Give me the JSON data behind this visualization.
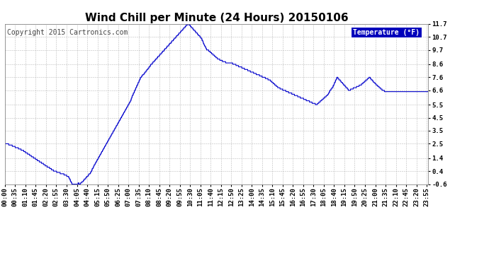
{
  "title": "Wind Chill per Minute (24 Hours) 20150106",
  "copyright": "Copyright 2015 Cartronics.com",
  "legend_label": "Temperature (°F)",
  "legend_bg": "#0000bb",
  "legend_text_color": "#ffffff",
  "line_color": "#0000cc",
  "bg_color": "#ffffff",
  "grid_color": "#bbbbbb",
  "yticks": [
    -0.6,
    0.4,
    1.4,
    2.5,
    3.5,
    4.5,
    5.5,
    6.6,
    7.6,
    8.6,
    9.7,
    10.7,
    11.7
  ],
  "ymin": -0.6,
  "ymax": 11.7,
  "title_fontsize": 11,
  "axis_fontsize": 6.5,
  "copyright_fontsize": 7,
  "key_points": [
    [
      0,
      2.5
    ],
    [
      5,
      2.5
    ],
    [
      10,
      2.5
    ],
    [
      15,
      2.4
    ],
    [
      20,
      2.4
    ],
    [
      30,
      2.3
    ],
    [
      40,
      2.2
    ],
    [
      50,
      2.1
    ],
    [
      60,
      2.0
    ],
    [
      80,
      1.7
    ],
    [
      100,
      1.4
    ],
    [
      120,
      1.1
    ],
    [
      140,
      0.8
    ],
    [
      155,
      0.6
    ],
    [
      160,
      0.5
    ],
    [
      170,
      0.4
    ],
    [
      175,
      0.35
    ],
    [
      180,
      0.3
    ],
    [
      195,
      0.2
    ],
    [
      200,
      0.15
    ],
    [
      205,
      0.1
    ],
    [
      210,
      0.05
    ],
    [
      215,
      0.0
    ],
    [
      218,
      -0.1
    ],
    [
      220,
      -0.2
    ],
    [
      222,
      -0.3
    ],
    [
      224,
      -0.4
    ],
    [
      226,
      -0.5
    ],
    [
      228,
      -0.55
    ],
    [
      230,
      -0.6
    ],
    [
      235,
      -0.6
    ],
    [
      237,
      -0.55
    ],
    [
      238,
      -0.6
    ],
    [
      240,
      -0.6
    ],
    [
      242,
      -0.55
    ],
    [
      244,
      -0.6
    ],
    [
      245,
      -0.55
    ],
    [
      247,
      -0.6
    ],
    [
      249,
      -0.5
    ],
    [
      250,
      -0.5
    ],
    [
      252,
      -0.55
    ],
    [
      254,
      -0.6
    ],
    [
      256,
      -0.55
    ],
    [
      258,
      -0.5
    ],
    [
      260,
      -0.5
    ],
    [
      262,
      -0.45
    ],
    [
      264,
      -0.4
    ],
    [
      266,
      -0.35
    ],
    [
      268,
      -0.3
    ],
    [
      270,
      -0.25
    ],
    [
      272,
      -0.2
    ],
    [
      274,
      -0.15
    ],
    [
      276,
      -0.1
    ],
    [
      278,
      -0.05
    ],
    [
      280,
      0.0
    ],
    [
      282,
      0.05
    ],
    [
      284,
      0.1
    ],
    [
      286,
      0.15
    ],
    [
      288,
      0.2
    ],
    [
      290,
      0.25
    ],
    [
      292,
      0.3
    ],
    [
      294,
      0.4
    ],
    [
      296,
      0.5
    ],
    [
      298,
      0.6
    ],
    [
      300,
      0.7
    ],
    [
      305,
      0.9
    ],
    [
      310,
      1.1
    ],
    [
      315,
      1.3
    ],
    [
      320,
      1.5
    ],
    [
      325,
      1.7
    ],
    [
      330,
      1.9
    ],
    [
      340,
      2.3
    ],
    [
      350,
      2.7
    ],
    [
      360,
      3.1
    ],
    [
      370,
      3.5
    ],
    [
      380,
      3.9
    ],
    [
      390,
      4.3
    ],
    [
      395,
      4.5
    ],
    [
      400,
      4.7
    ],
    [
      410,
      5.1
    ],
    [
      415,
      5.3
    ],
    [
      420,
      5.5
    ],
    [
      425,
      5.7
    ],
    [
      428,
      5.8
    ],
    [
      430,
      6.0
    ],
    [
      432,
      6.1
    ],
    [
      434,
      6.2
    ],
    [
      436,
      6.3
    ],
    [
      438,
      6.4
    ],
    [
      440,
      6.5
    ],
    [
      442,
      6.6
    ],
    [
      444,
      6.7
    ],
    [
      446,
      6.8
    ],
    [
      448,
      6.9
    ],
    [
      450,
      7.0
    ],
    [
      452,
      7.1
    ],
    [
      454,
      7.2
    ],
    [
      456,
      7.3
    ],
    [
      458,
      7.4
    ],
    [
      460,
      7.5
    ],
    [
      462,
      7.6
    ],
    [
      464,
      7.65
    ],
    [
      466,
      7.7
    ],
    [
      468,
      7.75
    ],
    [
      470,
      7.8
    ],
    [
      472,
      7.85
    ],
    [
      474,
      7.9
    ],
    [
      476,
      7.95
    ],
    [
      478,
      8.0
    ],
    [
      480,
      8.1
    ],
    [
      485,
      8.2
    ],
    [
      488,
      8.3
    ],
    [
      490,
      8.35
    ],
    [
      492,
      8.4
    ],
    [
      494,
      8.5
    ],
    [
      496,
      8.55
    ],
    [
      498,
      8.6
    ],
    [
      500,
      8.65
    ],
    [
      502,
      8.7
    ],
    [
      504,
      8.75
    ],
    [
      506,
      8.8
    ],
    [
      508,
      8.85
    ],
    [
      510,
      8.9
    ],
    [
      512,
      8.95
    ],
    [
      514,
      9.0
    ],
    [
      516,
      9.05
    ],
    [
      518,
      9.1
    ],
    [
      520,
      9.15
    ],
    [
      522,
      9.2
    ],
    [
      524,
      9.25
    ],
    [
      526,
      9.3
    ],
    [
      528,
      9.35
    ],
    [
      530,
      9.4
    ],
    [
      532,
      9.45
    ],
    [
      534,
      9.5
    ],
    [
      536,
      9.55
    ],
    [
      538,
      9.6
    ],
    [
      540,
      9.65
    ],
    [
      542,
      9.7
    ],
    [
      544,
      9.75
    ],
    [
      546,
      9.8
    ],
    [
      548,
      9.85
    ],
    [
      550,
      9.9
    ],
    [
      552,
      9.95
    ],
    [
      554,
      10.0
    ],
    [
      556,
      10.05
    ],
    [
      558,
      10.1
    ],
    [
      560,
      10.15
    ],
    [
      562,
      10.2
    ],
    [
      564,
      10.25
    ],
    [
      566,
      10.3
    ],
    [
      568,
      10.35
    ],
    [
      570,
      10.4
    ],
    [
      572,
      10.45
    ],
    [
      574,
      10.5
    ],
    [
      576,
      10.55
    ],
    [
      578,
      10.6
    ],
    [
      580,
      10.65
    ],
    [
      582,
      10.7
    ],
    [
      584,
      10.75
    ],
    [
      586,
      10.8
    ],
    [
      588,
      10.85
    ],
    [
      590,
      10.9
    ],
    [
      592,
      10.95
    ],
    [
      594,
      11.0
    ],
    [
      596,
      11.05
    ],
    [
      598,
      11.1
    ],
    [
      600,
      11.15
    ],
    [
      602,
      11.2
    ],
    [
      604,
      11.25
    ],
    [
      606,
      11.3
    ],
    [
      608,
      11.35
    ],
    [
      610,
      11.4
    ],
    [
      612,
      11.45
    ],
    [
      614,
      11.5
    ],
    [
      616,
      11.55
    ],
    [
      618,
      11.6
    ],
    [
      620,
      11.65
    ],
    [
      622,
      11.7
    ],
    [
      624,
      11.7
    ],
    [
      626,
      11.65
    ],
    [
      628,
      11.6
    ],
    [
      630,
      11.55
    ],
    [
      632,
      11.5
    ],
    [
      634,
      11.45
    ],
    [
      636,
      11.4
    ],
    [
      638,
      11.35
    ],
    [
      640,
      11.3
    ],
    [
      642,
      11.25
    ],
    [
      644,
      11.2
    ],
    [
      646,
      11.15
    ],
    [
      648,
      11.1
    ],
    [
      650,
      11.05
    ],
    [
      652,
      11.0
    ],
    [
      654,
      10.95
    ],
    [
      656,
      10.9
    ],
    [
      658,
      10.85
    ],
    [
      660,
      10.8
    ],
    [
      662,
      10.75
    ],
    [
      664,
      10.7
    ],
    [
      666,
      10.65
    ],
    [
      668,
      10.6
    ],
    [
      670,
      10.5
    ],
    [
      672,
      10.4
    ],
    [
      674,
      10.3
    ],
    [
      676,
      10.2
    ],
    [
      678,
      10.1
    ],
    [
      680,
      10.0
    ],
    [
      682,
      9.9
    ],
    [
      684,
      9.8
    ],
    [
      686,
      9.7
    ],
    [
      688,
      9.7
    ],
    [
      690,
      9.7
    ],
    [
      695,
      9.6
    ],
    [
      700,
      9.5
    ],
    [
      705,
      9.4
    ],
    [
      710,
      9.3
    ],
    [
      715,
      9.2
    ],
    [
      720,
      9.1
    ],
    [
      725,
      9.0
    ],
    [
      730,
      8.95
    ],
    [
      735,
      8.9
    ],
    [
      740,
      8.85
    ],
    [
      745,
      8.8
    ],
    [
      750,
      8.75
    ],
    [
      755,
      8.7
    ],
    [
      760,
      8.7
    ],
    [
      765,
      8.7
    ],
    [
      770,
      8.7
    ],
    [
      775,
      8.65
    ],
    [
      780,
      8.6
    ],
    [
      785,
      8.55
    ],
    [
      790,
      8.5
    ],
    [
      795,
      8.45
    ],
    [
      800,
      8.4
    ],
    [
      805,
      8.35
    ],
    [
      810,
      8.3
    ],
    [
      815,
      8.25
    ],
    [
      820,
      8.2
    ],
    [
      825,
      8.15
    ],
    [
      830,
      8.1
    ],
    [
      835,
      8.05
    ],
    [
      840,
      8.0
    ],
    [
      845,
      7.95
    ],
    [
      850,
      7.9
    ],
    [
      855,
      7.85
    ],
    [
      860,
      7.8
    ],
    [
      865,
      7.75
    ],
    [
      870,
      7.7
    ],
    [
      875,
      7.65
    ],
    [
      880,
      7.6
    ],
    [
      885,
      7.55
    ],
    [
      890,
      7.5
    ],
    [
      895,
      7.45
    ],
    [
      900,
      7.4
    ],
    [
      905,
      7.3
    ],
    [
      910,
      7.2
    ],
    [
      915,
      7.1
    ],
    [
      920,
      7.0
    ],
    [
      925,
      6.9
    ],
    [
      930,
      6.8
    ],
    [
      935,
      6.75
    ],
    [
      940,
      6.7
    ],
    [
      945,
      6.65
    ],
    [
      950,
      6.6
    ],
    [
      955,
      6.55
    ],
    [
      960,
      6.5
    ],
    [
      965,
      6.45
    ],
    [
      970,
      6.4
    ],
    [
      975,
      6.35
    ],
    [
      980,
      6.3
    ],
    [
      985,
      6.25
    ],
    [
      990,
      6.2
    ],
    [
      995,
      6.15
    ],
    [
      1000,
      6.1
    ],
    [
      1005,
      6.05
    ],
    [
      1010,
      6.0
    ],
    [
      1015,
      5.95
    ],
    [
      1020,
      5.9
    ],
    [
      1025,
      5.85
    ],
    [
      1030,
      5.8
    ],
    [
      1035,
      5.75
    ],
    [
      1040,
      5.7
    ],
    [
      1045,
      5.65
    ],
    [
      1050,
      5.6
    ],
    [
      1055,
      5.55
    ],
    [
      1060,
      5.5
    ],
    [
      1065,
      5.6
    ],
    [
      1070,
      5.7
    ],
    [
      1075,
      5.8
    ],
    [
      1080,
      5.9
    ],
    [
      1085,
      6.0
    ],
    [
      1090,
      6.1
    ],
    [
      1095,
      6.2
    ],
    [
      1100,
      6.3
    ],
    [
      1102,
      6.4
    ],
    [
      1104,
      6.5
    ],
    [
      1106,
      6.6
    ],
    [
      1108,
      6.65
    ],
    [
      1110,
      6.7
    ],
    [
      1112,
      6.75
    ],
    [
      1114,
      6.8
    ],
    [
      1116,
      6.9
    ],
    [
      1118,
      7.0
    ],
    [
      1120,
      7.1
    ],
    [
      1122,
      7.2
    ],
    [
      1124,
      7.3
    ],
    [
      1126,
      7.4
    ],
    [
      1128,
      7.5
    ],
    [
      1130,
      7.6
    ],
    [
      1132,
      7.55
    ],
    [
      1134,
      7.5
    ],
    [
      1136,
      7.45
    ],
    [
      1138,
      7.4
    ],
    [
      1140,
      7.35
    ],
    [
      1142,
      7.3
    ],
    [
      1144,
      7.25
    ],
    [
      1146,
      7.2
    ],
    [
      1148,
      7.15
    ],
    [
      1150,
      7.1
    ],
    [
      1152,
      7.05
    ],
    [
      1154,
      7.0
    ],
    [
      1156,
      6.95
    ],
    [
      1158,
      6.9
    ],
    [
      1160,
      6.85
    ],
    [
      1162,
      6.8
    ],
    [
      1164,
      6.75
    ],
    [
      1166,
      6.7
    ],
    [
      1168,
      6.65
    ],
    [
      1170,
      6.6
    ],
    [
      1175,
      6.65
    ],
    [
      1180,
      6.7
    ],
    [
      1185,
      6.75
    ],
    [
      1190,
      6.8
    ],
    [
      1195,
      6.85
    ],
    [
      1200,
      6.9
    ],
    [
      1205,
      6.95
    ],
    [
      1210,
      7.0
    ],
    [
      1215,
      7.1
    ],
    [
      1220,
      7.2
    ],
    [
      1225,
      7.3
    ],
    [
      1230,
      7.4
    ],
    [
      1235,
      7.5
    ],
    [
      1240,
      7.6
    ],
    [
      1242,
      7.55
    ],
    [
      1244,
      7.5
    ],
    [
      1246,
      7.45
    ],
    [
      1248,
      7.4
    ],
    [
      1250,
      7.35
    ],
    [
      1252,
      7.3
    ],
    [
      1254,
      7.25
    ],
    [
      1256,
      7.2
    ],
    [
      1258,
      7.15
    ],
    [
      1260,
      7.1
    ],
    [
      1265,
      7.0
    ],
    [
      1270,
      6.9
    ],
    [
      1275,
      6.8
    ],
    [
      1280,
      6.7
    ],
    [
      1285,
      6.6
    ],
    [
      1290,
      6.55
    ],
    [
      1295,
      6.5
    ],
    [
      1300,
      6.5
    ],
    [
      1305,
      6.5
    ],
    [
      1310,
      6.5
    ],
    [
      1315,
      6.5
    ],
    [
      1320,
      6.5
    ],
    [
      1325,
      6.5
    ],
    [
      1330,
      6.5
    ],
    [
      1335,
      6.5
    ],
    [
      1340,
      6.5
    ],
    [
      1345,
      6.5
    ],
    [
      1350,
      6.5
    ],
    [
      1355,
      6.5
    ],
    [
      1360,
      6.5
    ],
    [
      1365,
      6.5
    ],
    [
      1370,
      6.5
    ],
    [
      1375,
      6.5
    ],
    [
      1380,
      6.5
    ],
    [
      1385,
      6.5
    ],
    [
      1390,
      6.5
    ],
    [
      1395,
      6.5
    ],
    [
      1400,
      6.5
    ],
    [
      1405,
      6.5
    ],
    [
      1410,
      6.5
    ],
    [
      1415,
      6.5
    ],
    [
      1420,
      6.5
    ],
    [
      1425,
      6.5
    ],
    [
      1430,
      6.5
    ],
    [
      1435,
      6.5
    ],
    [
      1439,
      6.5
    ]
  ]
}
